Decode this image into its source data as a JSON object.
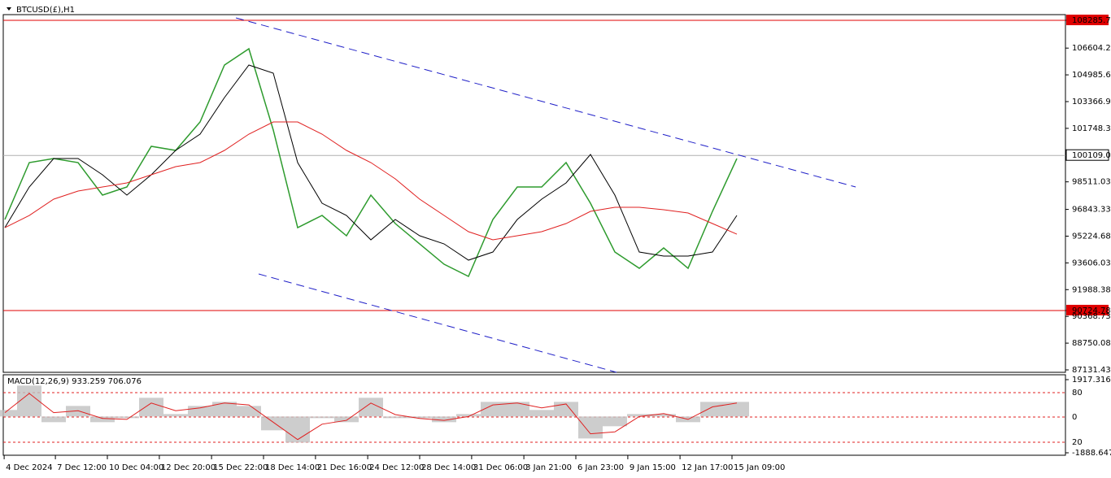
{
  "chart_data": [
    {
      "type": "line",
      "title": "BTCUSD(£),H1",
      "x": [
        0,
        1,
        2,
        3,
        4,
        5,
        6,
        7,
        8,
        9,
        10,
        11,
        12,
        13,
        14,
        15,
        16,
        17,
        18,
        19,
        20,
        21,
        22,
        23,
        24,
        25,
        26,
        27,
        28,
        29,
        30
      ],
      "series": [
        {
          "color": "#2e9b2e",
          "values": [
            96232,
            99676,
            99922,
            99676,
            97708,
            98200,
            100660,
            100414,
            102136,
            105580,
            106564,
            101644,
            95740,
            96478,
            95248,
            97708,
            95986,
            94756,
            93526,
            92788,
            96232,
            98200,
            98200,
            99676,
            97216,
            94264,
            93280,
            94510,
            93280,
            96724,
            99922
          ]
        },
        {
          "color": "#000000",
          "values": [
            95740,
            98200,
            99922,
            99922,
            98938,
            97708,
            98938,
            100414,
            101398,
            103612,
            105580,
            105088,
            99676,
            97216,
            96478,
            95002,
            96232,
            95248,
            94756,
            93772,
            94264,
            96232,
            97462,
            98446,
            100168,
            97708,
            94264,
            94018,
            94018,
            94264,
            96478
          ]
        },
        {
          "color": "#e02020",
          "values": [
            95740,
            96478,
            97462,
            97954,
            98200,
            98446,
            98938,
            99430,
            99676,
            100414,
            101398,
            102136,
            102136,
            101398,
            100414,
            99676,
            98692,
            97462,
            96478,
            95494,
            95002,
            95248,
            95494,
            95986,
            96724,
            96970,
            96970,
            96822,
            96626,
            95986,
            95346
          ]
        }
      ],
      "hlines": [
        {
          "value": 108285.79,
          "color": "#e00000"
        },
        {
          "value": 90724.78,
          "color": "#e00000"
        },
        {
          "value": 100109,
          "color": "#b0b0b0"
        }
      ],
      "trendlines": [
        {
          "color": "#2020c8",
          "x": [
            9.47,
            34.87
          ],
          "y": [
            108433,
            98200
          ]
        },
        {
          "color": "#2020c8",
          "x": [
            10.4,
            25.07
          ],
          "y": [
            92935,
            86984
          ]
        }
      ],
      "xlim": [
        -0.0667,
        43.4667
      ],
      "xticks": [
        {
          "value": -0.03,
          "label": "4 Dec 2024"
        },
        {
          "value": 2.07,
          "label": "7 Dec 12:00"
        },
        {
          "value": 4.2,
          "label": "10 Dec 04:00"
        },
        {
          "value": 6.33,
          "label": "12 Dec 20:00"
        },
        {
          "value": 8.47,
          "label": "15 Dec 22:00"
        },
        {
          "value": 10.6,
          "label": "18 Dec 14:00"
        },
        {
          "value": 12.73,
          "label": "21 Dec 16:00"
        },
        {
          "value": 14.87,
          "label": "24 Dec 12:00"
        },
        {
          "value": 17,
          "label": "28 Dec 14:00"
        },
        {
          "value": 19.13,
          "label": "31 Dec 06:00"
        },
        {
          "value": 21.27,
          "label": "3 Jan 21:00"
        },
        {
          "value": 23.4,
          "label": "6 Jan 23:00"
        },
        {
          "value": 25.53,
          "label": "9 Jan 15:00"
        },
        {
          "value": 27.67,
          "label": "12 Jan 17:00"
        },
        {
          "value": 29.8,
          "label": "15 Jan 09:00"
        }
      ],
      "ylim": [
        86984,
        108630
      ],
      "yticks": [
        108285.79,
        106604.28,
        104985.63,
        103366.98,
        101748.33,
        {
          "value": 100109,
          "label": "100109.00"
        },
        98511.03,
        96843.33,
        95224.68,
        93606.03,
        91988.38,
        90724.78,
        90368.73,
        88750.08,
        87131.43
      ]
    },
    {
      "type": "macd",
      "title": "MACD(12,26,9) 933.259 706.076",
      "series": [
        {
          "color": "#c0c0c0",
          "values": [
            338,
            1607,
            -296,
            550,
            -296,
            -85,
            973,
            127,
            550,
            761,
            550,
            -719,
            -1353,
            -85,
            -296,
            973,
            -85,
            -85,
            -296,
            127,
            761,
            761,
            338,
            761,
            -1142,
            -507,
            127,
            127,
            -296,
            761,
            761
          ]
        },
        {
          "color": "#e02020",
          "values": [
            200,
            1200,
            200,
            300,
            -100,
            -150,
            700,
            300,
            450,
            700,
            600,
            -300,
            -1200,
            -400,
            -200,
            700,
            100,
            -100,
            -200,
            0,
            600,
            700,
            450,
            650,
            -900,
            -800,
            0,
            150,
            -150,
            500,
            700
          ]
        }
      ],
      "ylim": [
        -2015,
        2171
      ],
      "yticks": [
        1917.316,
        -1888.647
      ],
      "levels": [
        {
          "value": 1240,
          "label": "80"
        },
        {
          "value": -28,
          "label": "0"
        },
        {
          "value": -1339,
          "label": "20"
        }
      ]
    }
  ]
}
